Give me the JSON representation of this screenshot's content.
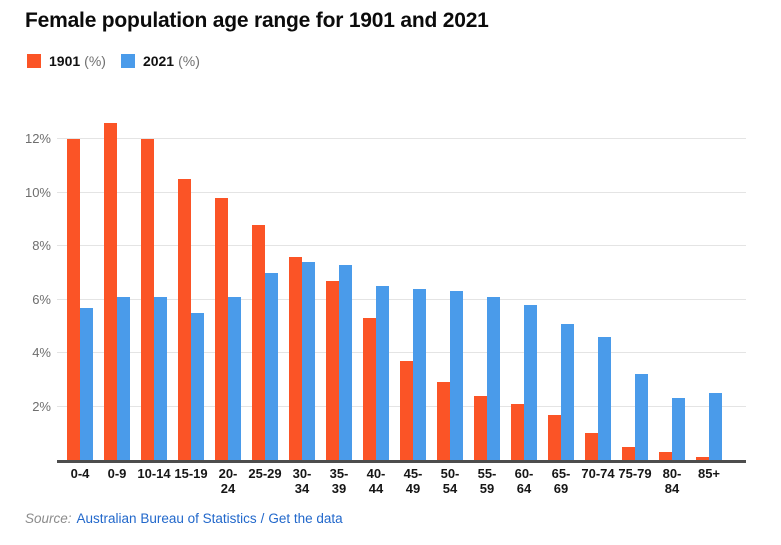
{
  "title": "Female population age range for 1901 and 2021",
  "legend": {
    "items": [
      {
        "year": "1901",
        "unit": "(%)",
        "color": "#FB5426"
      },
      {
        "year": "2021",
        "unit": "(%)",
        "color": "#4A9BEA"
      }
    ]
  },
  "source": {
    "label": "Source:",
    "link_statistics": "Australian Bureau of Statistics",
    "separator": "/",
    "link_get_data": "Get the data"
  },
  "colors": {
    "series_1901": "#FB5426",
    "series_2021": "#4A9BEA",
    "link": "#2268CB",
    "grid": "#E4E4E4",
    "axis": "#4D4D4D",
    "y_tick_text": "#6E6E6E",
    "x_tick_text": "#161616",
    "title_text": "#0B0B0B"
  },
  "chart_data": {
    "type": "bar",
    "title": "Female population age range for 1901 and 2021",
    "categories": [
      "0-4",
      "0-9",
      "10-14",
      "15-19",
      "20-24",
      "25-29",
      "30-34",
      "35-39",
      "40-44",
      "45-49",
      "50-54",
      "55-59",
      "60-64",
      "65-69",
      "70-74",
      "75-79",
      "80-84",
      "85+"
    ],
    "tick_display": [
      "0-4",
      "0-9",
      "10-14",
      "15-19",
      "20-\n24",
      "25-29",
      "30-\n34",
      "35-\n39",
      "40-\n44",
      "45-\n49",
      "50-\n54",
      "55-\n59",
      "60-\n64",
      "65-\n69",
      "70-74",
      "75-79",
      "80-\n84",
      "85+"
    ],
    "series": [
      {
        "name": "1901 (%)",
        "color": "#FB5426",
        "values": [
          12.0,
          12.6,
          12.0,
          10.5,
          9.8,
          8.8,
          7.6,
          6.7,
          5.3,
          3.7,
          2.9,
          2.4,
          2.1,
          1.7,
          1.0,
          0.5,
          0.3,
          0.1
        ]
      },
      {
        "name": "2021 (%)",
        "color": "#4A9BEA",
        "values": [
          5.7,
          6.1,
          6.1,
          5.5,
          6.1,
          7.0,
          7.4,
          7.3,
          6.5,
          6.4,
          6.3,
          6.1,
          5.8,
          5.1,
          4.6,
          3.2,
          2.3,
          2.5
        ]
      }
    ],
    "xlabel": "",
    "ylabel": "",
    "y_ticks": [
      {
        "value": 2,
        "label": "2%"
      },
      {
        "value": 4,
        "label": "4%"
      },
      {
        "value": 6,
        "label": "6%"
      },
      {
        "value": 8,
        "label": "8%"
      },
      {
        "value": 10,
        "label": "10%"
      },
      {
        "value": 12,
        "label": "12%"
      }
    ],
    "ylim": [
      0,
      12.75
    ],
    "grid": true,
    "legend_position": "top-left"
  }
}
